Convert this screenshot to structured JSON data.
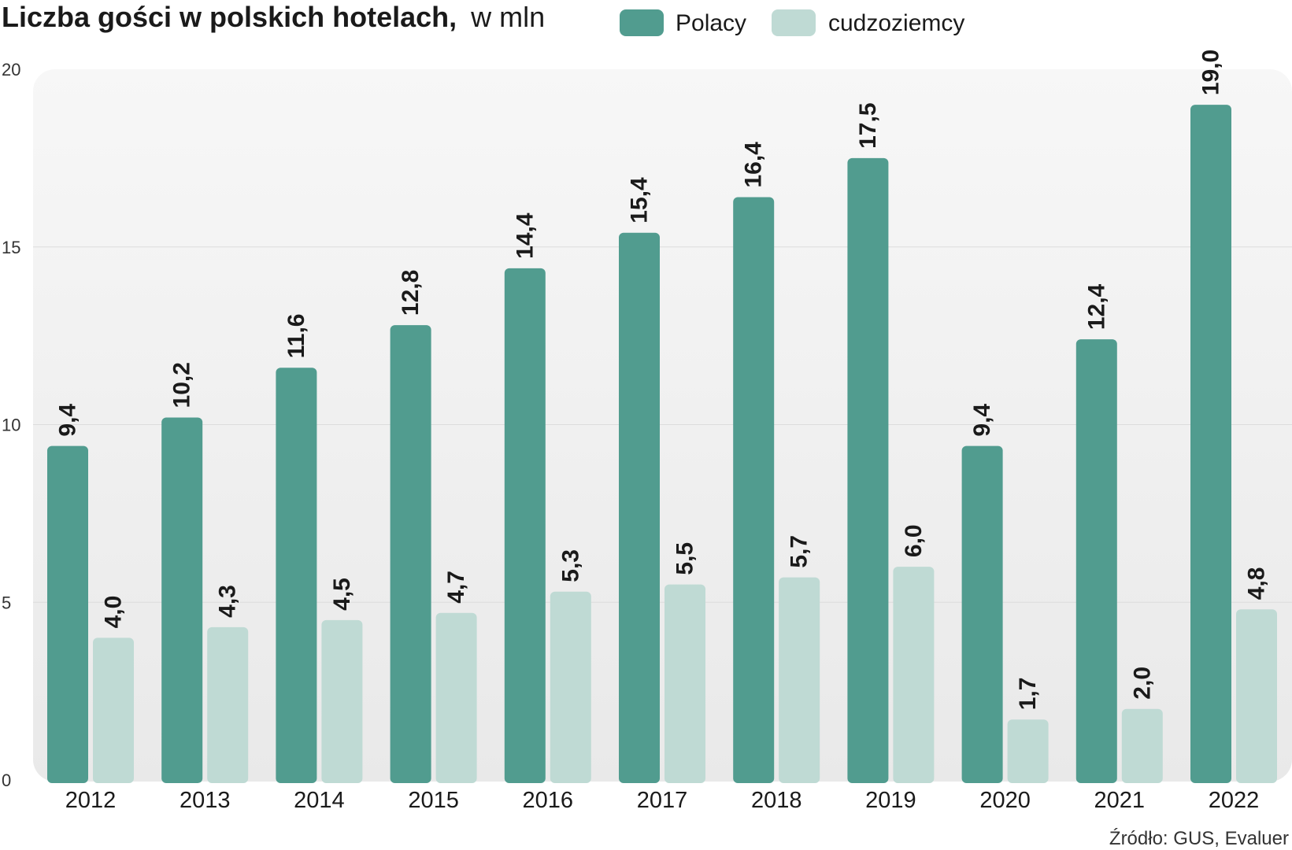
{
  "chart_data": {
    "type": "bar",
    "title": "Liczba gości w polskich hotelach,",
    "subtitle": "w mln",
    "source": "Źródło: GUS, Evaluer",
    "categories": [
      "2012",
      "2013",
      "2014",
      "2015",
      "2016",
      "2017",
      "2018",
      "2019",
      "2020",
      "2021",
      "2022"
    ],
    "series": [
      {
        "name": "Polacy",
        "color": "#519c8f",
        "values": [
          9.4,
          10.2,
          11.6,
          12.8,
          14.4,
          15.4,
          16.4,
          17.5,
          9.4,
          12.4,
          19.0
        ],
        "labels": [
          "9,4",
          "10,2",
          "11,6",
          "12,8",
          "14,4",
          "15,4",
          "16,4",
          "17,5",
          "9,4",
          "12,4",
          "19,0"
        ]
      },
      {
        "name": "cudzoziemcy",
        "color": "#bfdad4",
        "values": [
          4.0,
          4.3,
          4.5,
          4.7,
          5.3,
          5.5,
          5.7,
          6.0,
          1.7,
          2.0,
          4.8
        ],
        "labels": [
          "4,0",
          "4,3",
          "4,5",
          "4,7",
          "5,3",
          "5,5",
          "5,7",
          "6,0",
          "1,7",
          "2,0",
          "4,8"
        ]
      }
    ],
    "yticks": [
      "0",
      "5",
      "10",
      "15",
      "20"
    ],
    "ylim": [
      0,
      20
    ],
    "grid": true,
    "legend_position": "top"
  }
}
